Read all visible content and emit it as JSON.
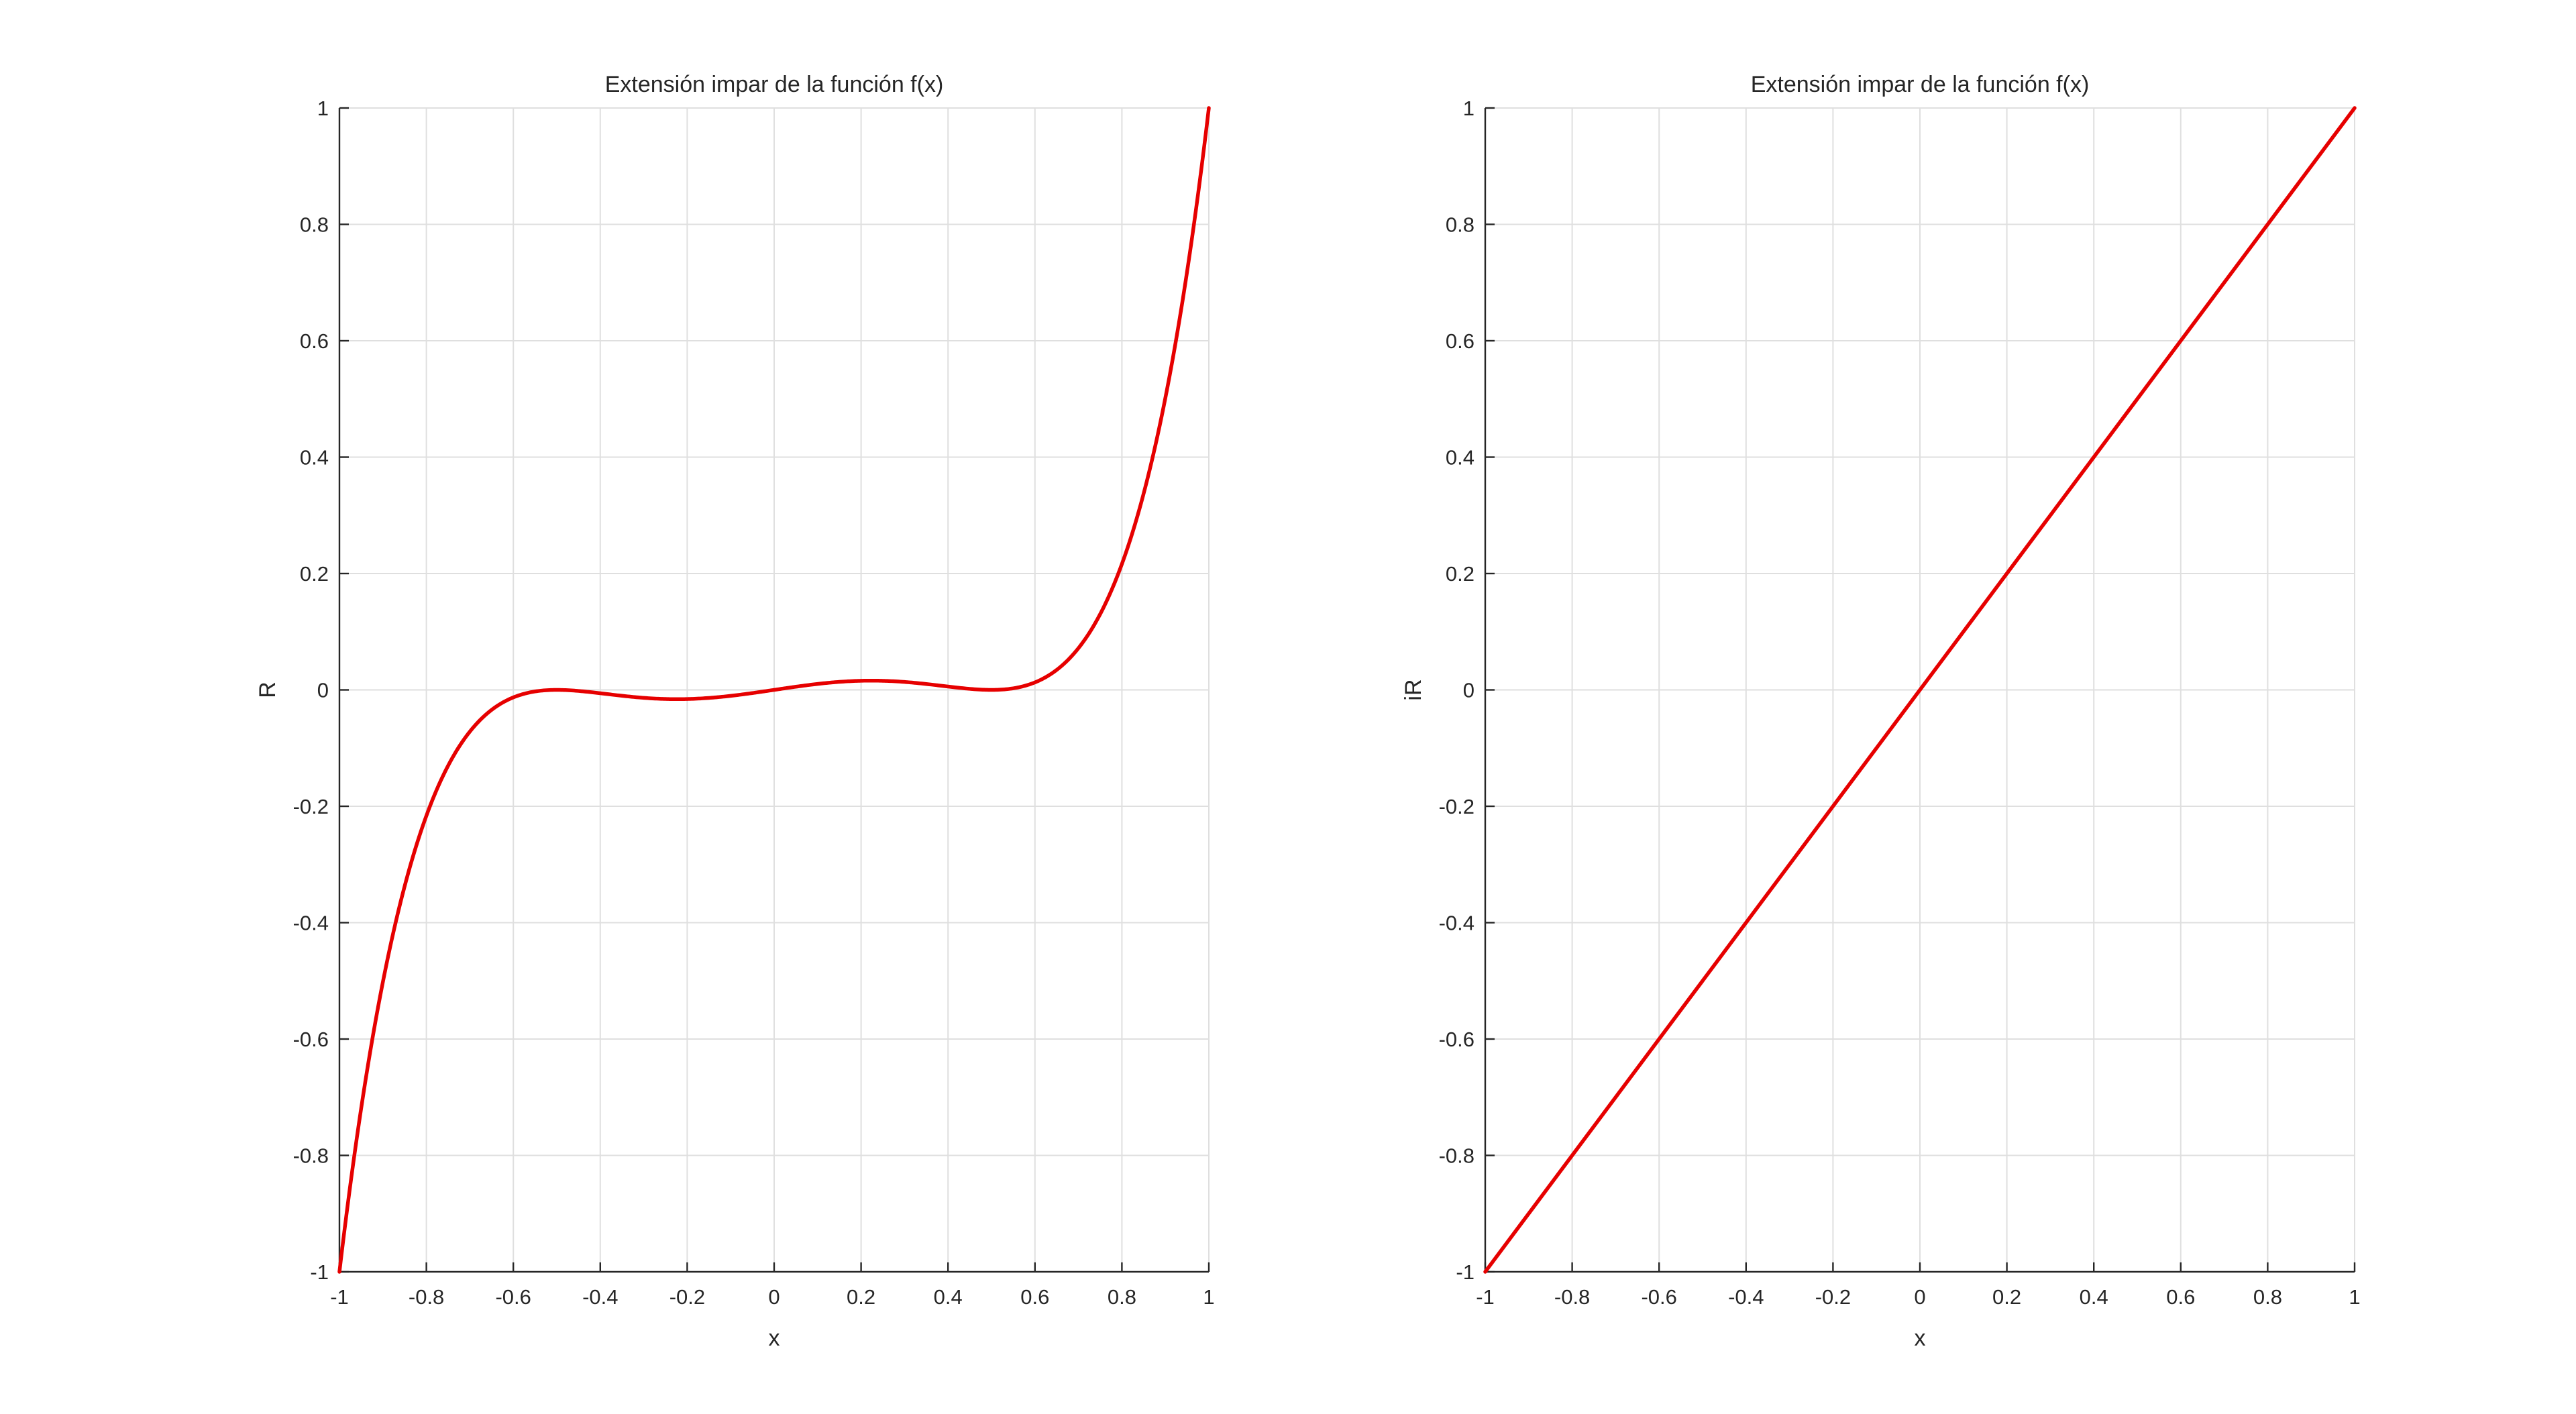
{
  "chart_data": [
    {
      "type": "line",
      "title": "Extensión impar de la función f(x)",
      "xlabel": "x",
      "ylabel": "R",
      "xlim": [
        -1,
        1
      ],
      "ylim": [
        -1,
        1
      ],
      "xticks": [
        "-1",
        "-0.8",
        "-0.6",
        "-0.4",
        "-0.2",
        "0",
        "0.2",
        "0.4",
        "0.6",
        "0.8",
        "1"
      ],
      "yticks": [
        "-1",
        "-0.8",
        "-0.6",
        "-0.4",
        "-0.2",
        "0",
        "0.2",
        "0.4",
        "0.6",
        "0.8",
        "1"
      ],
      "grid": true,
      "series": [
        {
          "color": "#e60000",
          "x": [
            -1,
            -0.9,
            -0.8,
            -0.7,
            -0.6,
            -0.5,
            -0.4,
            -0.3,
            -0.2,
            -0.167,
            -0.1,
            0,
            0.1,
            0.167,
            0.2,
            0.3,
            0.4,
            0.5,
            0.6,
            0.7,
            0.8,
            0.9,
            1
          ],
          "y": [
            -1,
            -0.563,
            -0.282,
            -0.115,
            -0.031,
            0,
            -0.014,
            -0.051,
            -0.072,
            -0.074,
            -0.059,
            0,
            0.059,
            0.074,
            0.072,
            0.051,
            0.014,
            0,
            0.031,
            0.115,
            0.282,
            0.563,
            1
          ]
        }
      ]
    },
    {
      "type": "line",
      "title": "Extensión impar de la función f(x)",
      "xlabel": "x",
      "ylabel": "iR",
      "xlim": [
        -1,
        1
      ],
      "ylim": [
        -1,
        1
      ],
      "xticks": [
        "-1",
        "-0.8",
        "-0.6",
        "-0.4",
        "-0.2",
        "0",
        "0.2",
        "0.4",
        "0.6",
        "0.8",
        "1"
      ],
      "yticks": [
        "-1",
        "-0.8",
        "-0.6",
        "-0.4",
        "-0.2",
        "0",
        "0.2",
        "0.4",
        "0.6",
        "0.8",
        "1"
      ],
      "grid": true,
      "series": [
        {
          "color": "#e60000",
          "x": [
            -1,
            1
          ],
          "y": [
            -1,
            1
          ]
        }
      ]
    }
  ]
}
